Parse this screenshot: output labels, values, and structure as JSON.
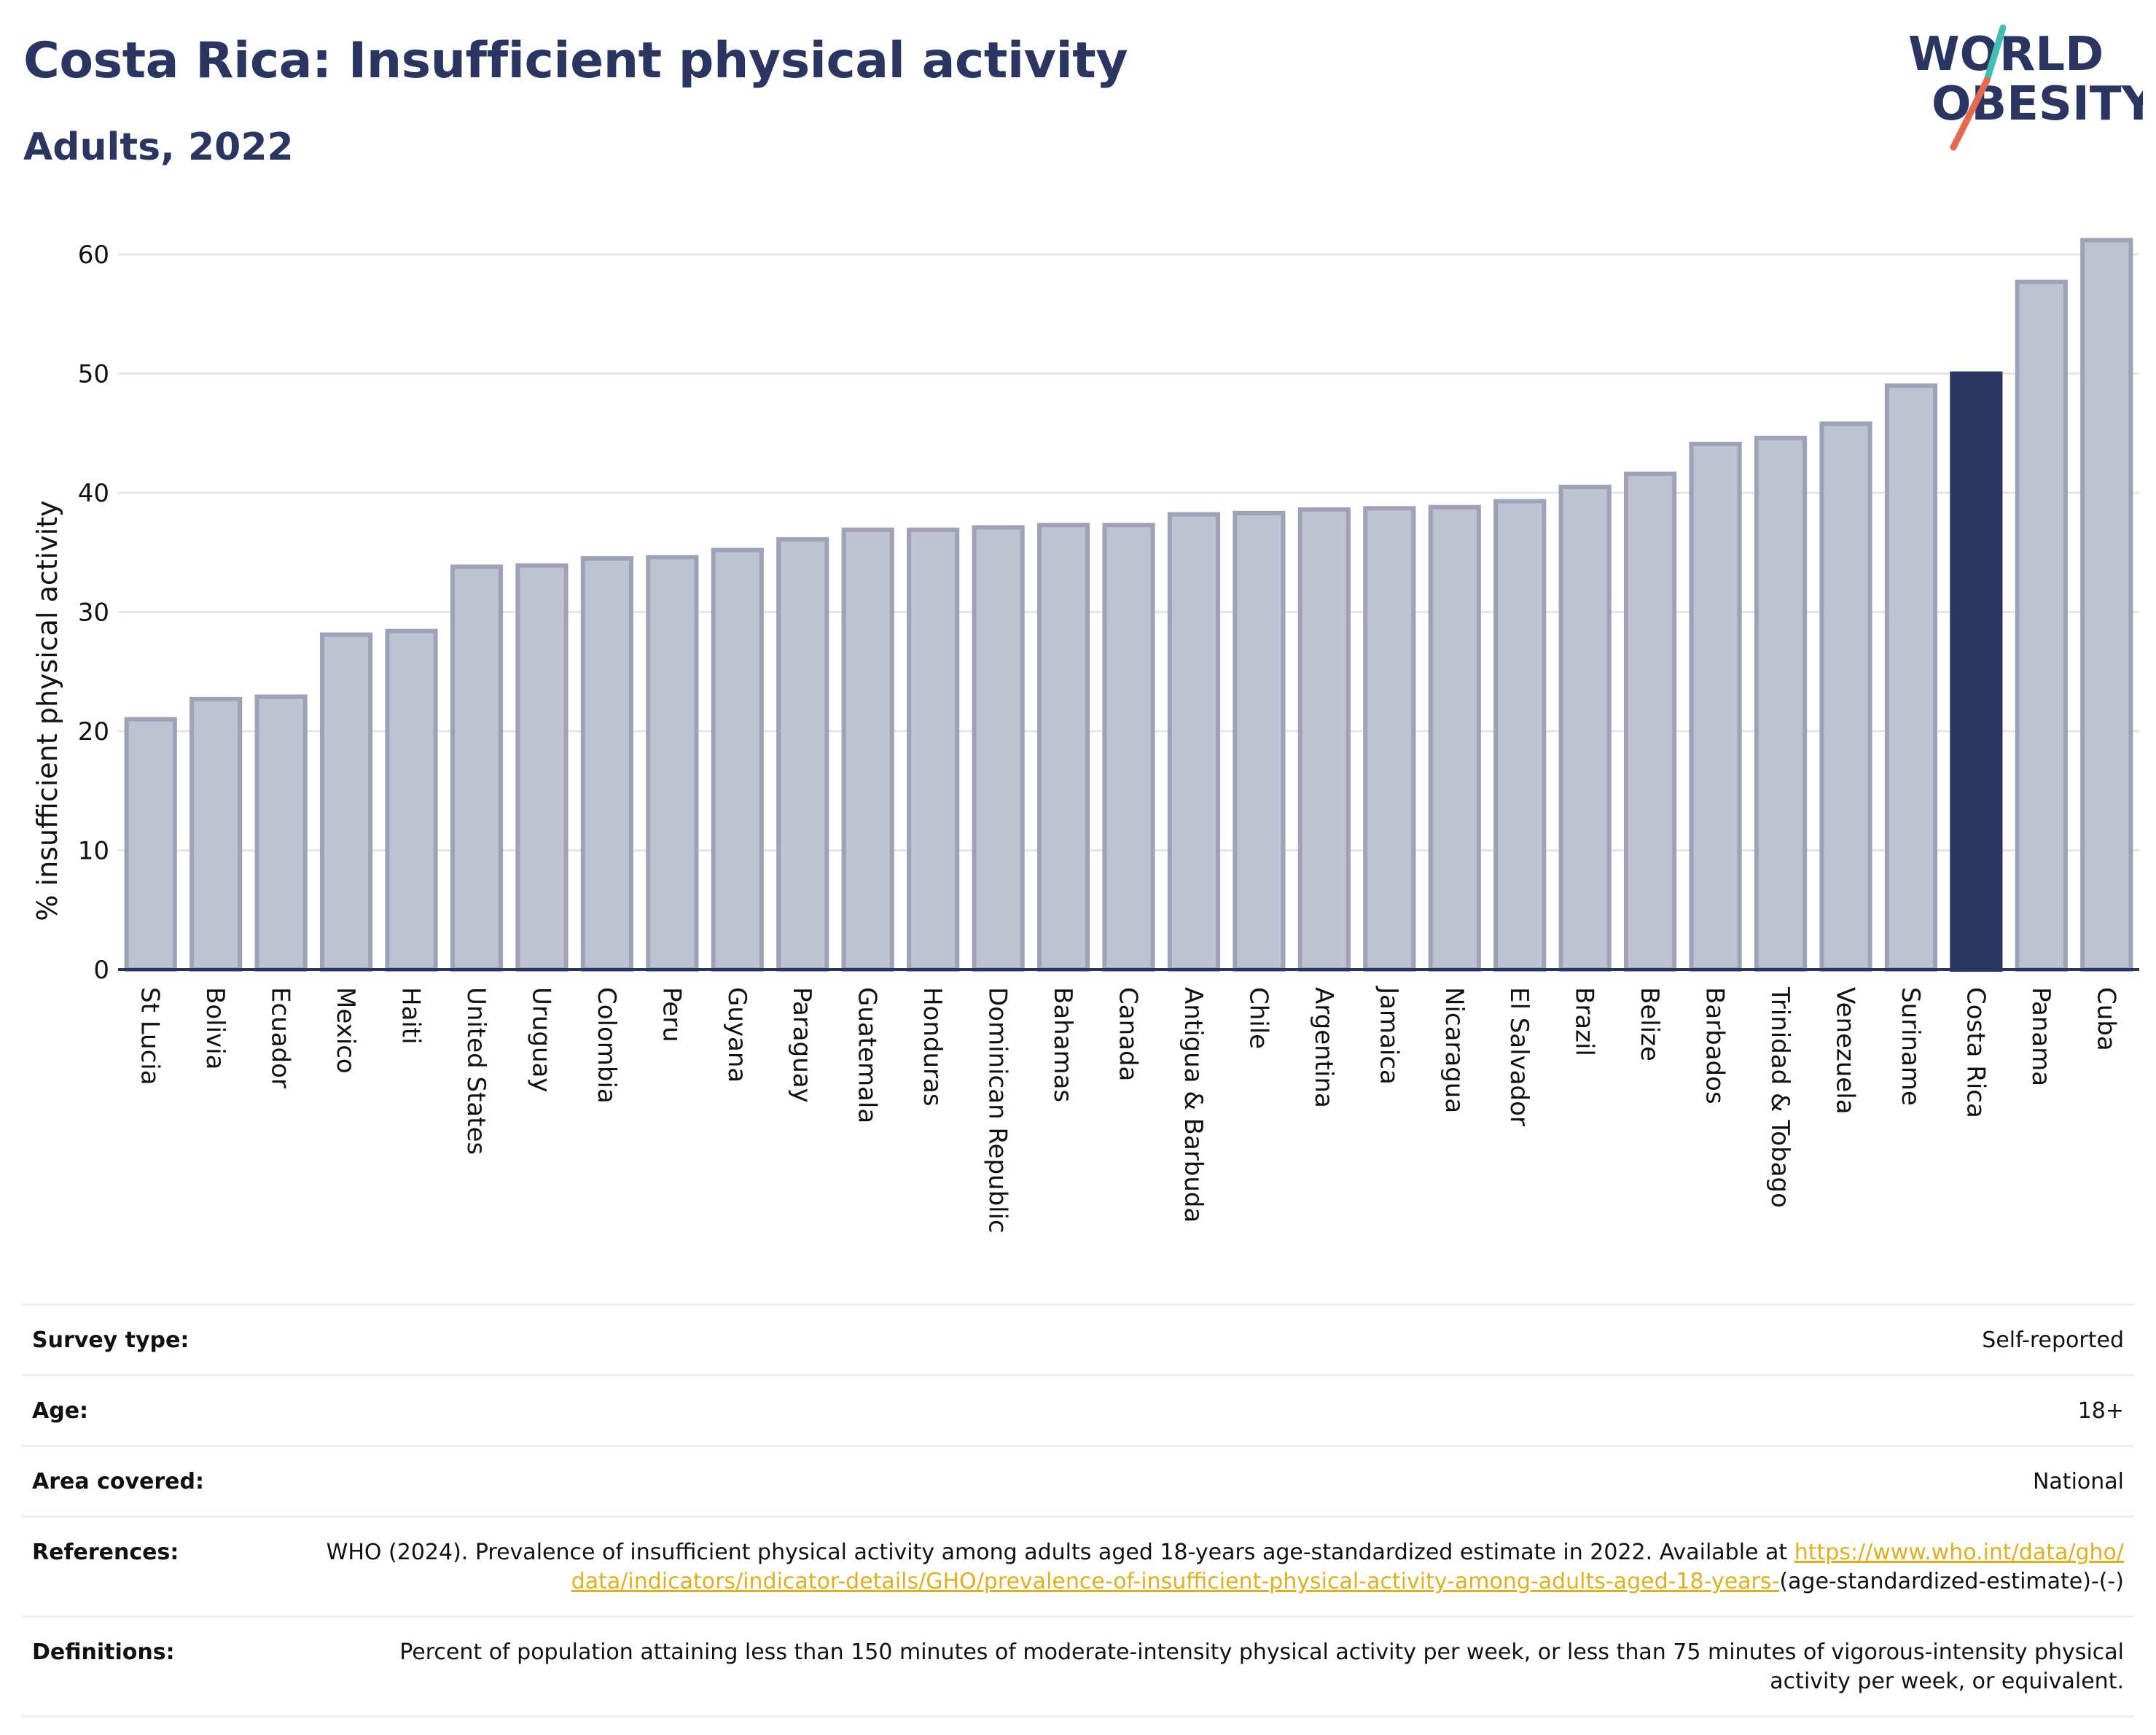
{
  "header": {
    "title": "Costa Rica: Insufficient physical activity",
    "subtitle": "Adults, 2022"
  },
  "logo": {
    "line1": "WORLD",
    "line2": "OBESITY",
    "slash_colors": [
      "#3fbfb0",
      "#e8674f"
    ]
  },
  "chart_data": {
    "type": "bar",
    "title": "Costa Rica: Insufficient physical activity",
    "subtitle": "Adults, 2022",
    "xlabel": "",
    "ylabel": "% insufficient physical activity",
    "ylim": [
      0,
      63
    ],
    "yticks": [
      0,
      10,
      20,
      30,
      40,
      50,
      60
    ],
    "grid": true,
    "highlight": "Costa Rica",
    "colors": {
      "bar": "#bfc2d0",
      "bar_edge": "#9da2b9",
      "highlight": "#2a3561",
      "grid": "#e6e6e6"
    },
    "categories": [
      "St Lucia",
      "Bolivia",
      "Ecuador",
      "Mexico",
      "Haiti",
      "United States",
      "Uruguay",
      "Colombia",
      "Peru",
      "Guyana",
      "Paraguay",
      "Guatemala",
      "Honduras",
      "Dominican Republic",
      "Bahamas",
      "Canada",
      "Antigua & Barbuda",
      "Chile",
      "Argentina",
      "Jamaica",
      "Nicaragua",
      "El Salvador",
      "Brazil",
      "Belize",
      "Barbados",
      "Trinidad & Tobago",
      "Venezuela",
      "Suriname",
      "Costa Rica",
      "Panama",
      "Cuba"
    ],
    "values": [
      21.0,
      22.7,
      22.9,
      28.1,
      28.4,
      33.8,
      33.9,
      34.5,
      34.6,
      35.2,
      36.1,
      36.9,
      36.9,
      37.1,
      37.3,
      37.3,
      38.2,
      38.3,
      38.6,
      38.7,
      38.8,
      39.3,
      40.5,
      41.6,
      44.1,
      44.6,
      45.8,
      49.0,
      50.0,
      57.7,
      61.2
    ]
  },
  "info": {
    "rows": [
      {
        "key": "Survey type:",
        "value": "Self-reported"
      },
      {
        "key": "Age:",
        "value": "18+"
      },
      {
        "key": "Area covered:",
        "value": "National"
      }
    ],
    "references": {
      "key": "References:",
      "text": "WHO (2024). Prevalence of insufficient physical activity among adults aged 18-years age-standardized estimate in 2022. Available at",
      "link": "https://www.who.int/data/gho/data/indicators/indicator-details/GHO/prevalence-of-insufficient-physical-activity-among-adults-aged-18-years-",
      "suffix": "(age-standardized-estimate)-(-)"
    },
    "definitions": {
      "key": "Definitions:",
      "value": "Percent of population attaining less than 150 minutes of moderate-intensity physical activity per week, or less than 75 minutes of vigorous-intensity physical activity per week, or equivalent."
    }
  }
}
